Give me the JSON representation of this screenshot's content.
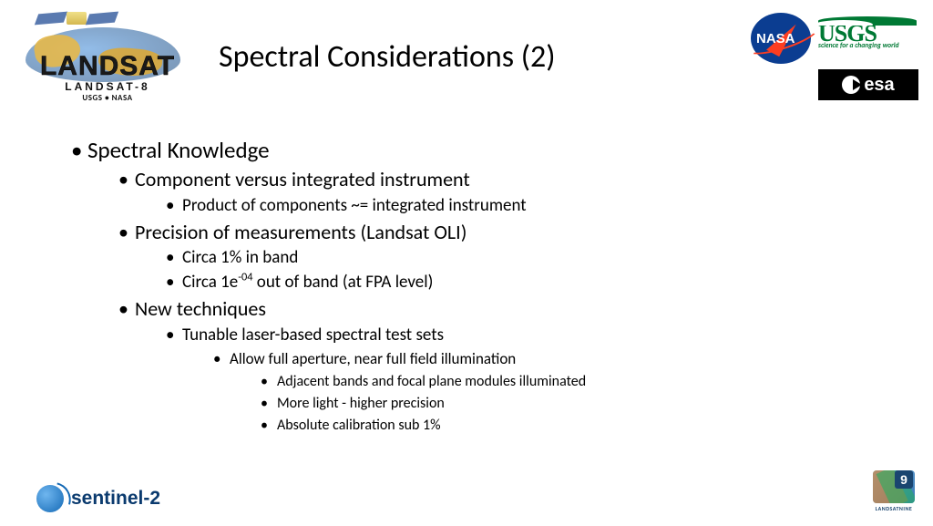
{
  "title": "Spectral Considerations (2)",
  "logos": {
    "landsat": {
      "main": "LANDSAT",
      "sub": "LANDSAT-8",
      "sub2": "USGS • NASA"
    },
    "nasa": "NASA",
    "usgs": {
      "text": "USGS",
      "tag": "science for a changing world"
    },
    "esa": "esa",
    "sentinel": "sentinel-2",
    "l9": {
      "num": "9",
      "cap": "LANDSATNINE"
    }
  },
  "bullets": {
    "l1": "Spectral Knowledge",
    "l2a": "Component versus integrated instrument",
    "l3a": "Product of components  ~= integrated instrument",
    "l2b": "Precision of measurements (Landsat OLI)",
    "l3b": "Circa 1% in band",
    "l3c_pre": "Circa 1e",
    "l3c_sup": "-04",
    "l3c_post": " out of band (at FPA level)",
    "l2c": "New techniques",
    "l3d": "Tunable laser-based spectral test sets",
    "l4a": "Allow full aperture, near full field illumination",
    "l5a": "Adjacent bands and focal plane modules illuminated",
    "l5b": "More light - higher precision",
    "l5c": "Absolute calibration sub 1%"
  }
}
